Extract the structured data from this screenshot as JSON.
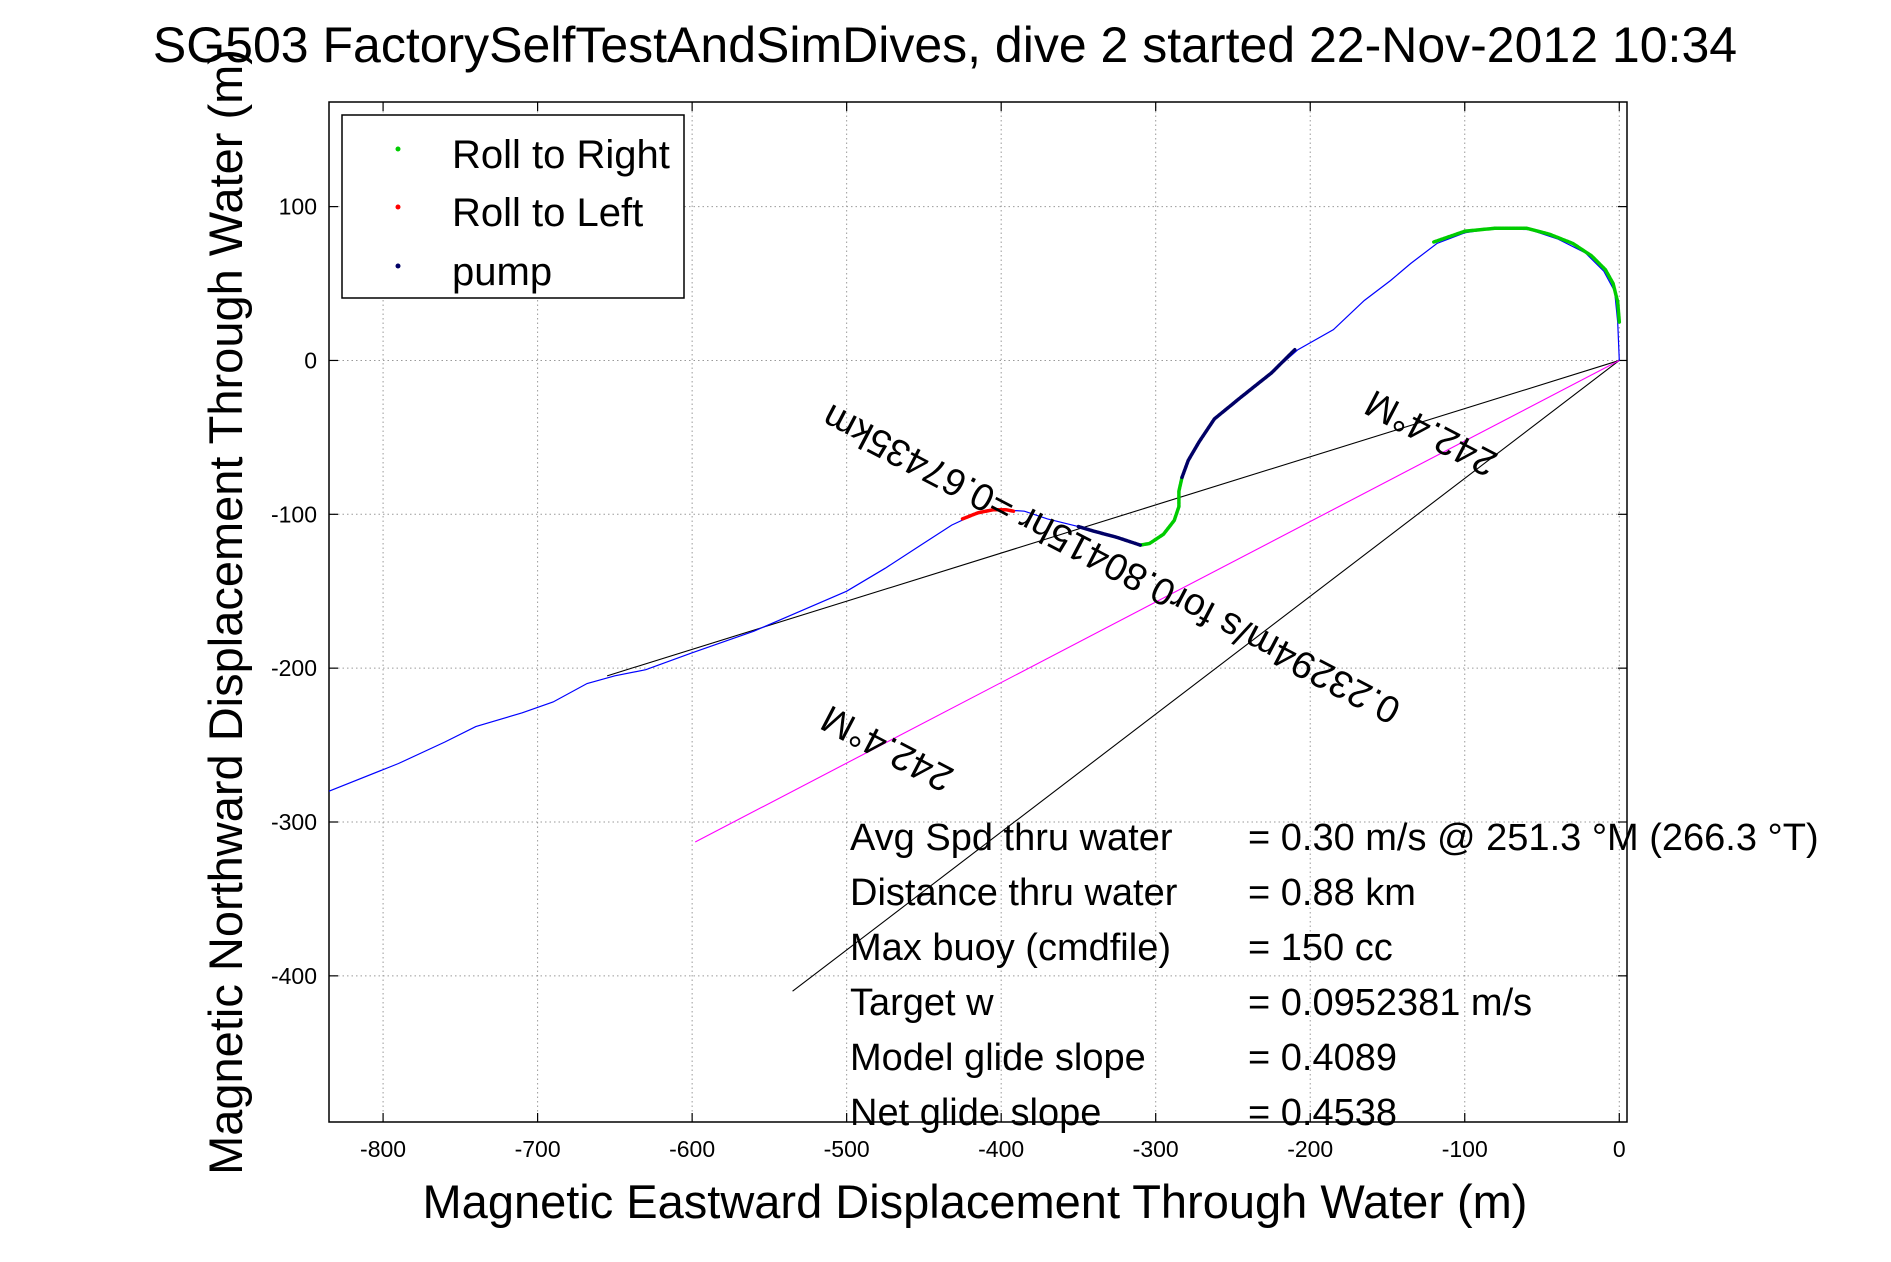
{
  "chart_data": {
    "type": "line",
    "title": "SG503 FactorySelfTestAndSimDives, dive 2 started 22-Nov-2012 10:34",
    "xlabel": "Magnetic Eastward Displacement Through Water (m)",
    "ylabel": "Magnetic Northward Displacement Through Water (m)",
    "xlim": [
      -835,
      5
    ],
    "ylim": [
      -495,
      168
    ],
    "xticks": [
      -800,
      -700,
      -600,
      -500,
      -400,
      -300,
      -200,
      -100,
      0
    ],
    "yticks": [
      100,
      0,
      -100,
      -200,
      -300,
      -400
    ],
    "xtick_labels": [
      "-800",
      "-700",
      "-600",
      "-500",
      "-400",
      "-300",
      "-200",
      "-100",
      "0"
    ],
    "ytick_labels": [
      "100",
      "0",
      "-100",
      "-200",
      "-300",
      "-400"
    ],
    "grid": true,
    "legend": {
      "position": "top-left",
      "entries": [
        {
          "label": "Roll to Right",
          "color": "#00cc00"
        },
        {
          "label": "Roll to Left",
          "color": "#ff0000"
        },
        {
          "label": "pump",
          "color": "#000066"
        }
      ]
    },
    "track": {
      "color": "#0000ff",
      "points": [
        [
          0,
          0
        ],
        [
          -1,
          25
        ],
        [
          -3,
          45
        ],
        [
          -10,
          58
        ],
        [
          -22,
          70
        ],
        [
          -40,
          79
        ],
        [
          -58,
          85
        ],
        [
          -80,
          86
        ],
        [
          -100,
          83
        ],
        [
          -118,
          76
        ],
        [
          -135,
          63
        ],
        [
          -148,
          52
        ],
        [
          -165,
          39
        ],
        [
          -185,
          20
        ],
        [
          -208,
          7
        ],
        [
          -225,
          -8
        ],
        [
          -245,
          -24
        ],
        [
          -262,
          -38
        ],
        [
          -272,
          -53
        ],
        [
          -279,
          -65
        ],
        [
          -283,
          -76
        ],
        [
          -285,
          -85
        ],
        [
          -285,
          -95
        ],
        [
          -288,
          -104
        ],
        [
          -295,
          -113
        ],
        [
          -304,
          -119
        ],
        [
          -310,
          -120
        ],
        [
          -330,
          -113
        ],
        [
          -350,
          -108
        ],
        [
          -370,
          -103
        ],
        [
          -385,
          -98
        ],
        [
          -400,
          -97
        ],
        [
          -415,
          -99
        ],
        [
          -432,
          -107
        ],
        [
          -452,
          -120
        ],
        [
          -475,
          -135
        ],
        [
          -500,
          -150
        ],
        [
          -530,
          -163
        ],
        [
          -560,
          -176
        ],
        [
          -600,
          -190
        ],
        [
          -630,
          -201
        ],
        [
          -650,
          -205
        ],
        [
          -668,
          -210
        ],
        [
          -690,
          -222
        ],
        [
          -710,
          -229
        ],
        [
          -740,
          -238
        ],
        [
          -760,
          -248
        ],
        [
          -790,
          -262
        ],
        [
          -835,
          -280
        ]
      ]
    },
    "roll_right_segments": [
      [
        [
          -120,
          77
        ],
        [
          -100,
          84
        ],
        [
          -80,
          86
        ],
        [
          -60,
          86
        ],
        [
          -45,
          82
        ],
        [
          -30,
          76
        ],
        [
          -18,
          68
        ],
        [
          -9,
          59
        ],
        [
          -4,
          50
        ],
        [
          -1,
          38
        ],
        [
          0,
          25
        ]
      ],
      [
        [
          -283,
          -76
        ],
        [
          -285,
          -85
        ],
        [
          -285,
          -95
        ],
        [
          -288,
          -104
        ],
        [
          -295,
          -113
        ],
        [
          -304,
          -119
        ],
        [
          -310,
          -120
        ]
      ]
    ],
    "roll_left_segments": [
      [
        [
          -425,
          -103
        ],
        [
          -415,
          -99
        ],
        [
          -405,
          -97
        ],
        [
          -397,
          -97
        ],
        [
          -392,
          -98
        ]
      ]
    ],
    "pump_segments": [
      [
        [
          -210,
          7
        ],
        [
          -225,
          -8
        ],
        [
          -245,
          -24
        ],
        [
          -262,
          -38
        ],
        [
          -272,
          -53
        ],
        [
          -279,
          -65
        ],
        [
          -283,
          -76
        ]
      ],
      [
        [
          -310,
          -120
        ],
        [
          -325,
          -115
        ],
        [
          -340,
          -111
        ],
        [
          -350,
          -108
        ]
      ]
    ],
    "heading_lines": [
      {
        "from": [
          0,
          0
        ],
        "to": [
          -655,
          -205
        ],
        "color": "#000000"
      },
      {
        "from": [
          0,
          0
        ],
        "to": [
          -535,
          -410
        ],
        "color": "#000000"
      },
      {
        "from": [
          0,
          0
        ],
        "to": [
          -598,
          -313
        ],
        "color": "#ff00ff"
      }
    ],
    "annotations": [
      {
        "text": "242.4°M",
        "at": [
          -118,
          -40
        ],
        "angle": 27.6
      },
      {
        "text": "0.23294m/s for0.80415hr =0.67435km",
        "at": [
          -325,
          -125
        ],
        "angle": 27.6
      },
      {
        "text": "242.4°M",
        "at": [
          -470,
          -245
        ],
        "angle": 27.6
      }
    ],
    "stats": [
      {
        "label": "Avg Spd thru water",
        "value": "=  0.30 m/s @ 251.3 °M (266.3 °T)"
      },
      {
        "label": "Distance thru water",
        "value": "=  0.88 km"
      },
      {
        "label": "Max buoy (cmdfile)",
        "value": "= 150 cc"
      },
      {
        "label": "Target w",
        "value": "= 0.0952381 m/s"
      },
      {
        "label": "Model glide slope",
        "value": "= 0.4089"
      },
      {
        "label": "Net glide slope",
        "value": "= 0.4538"
      }
    ]
  }
}
